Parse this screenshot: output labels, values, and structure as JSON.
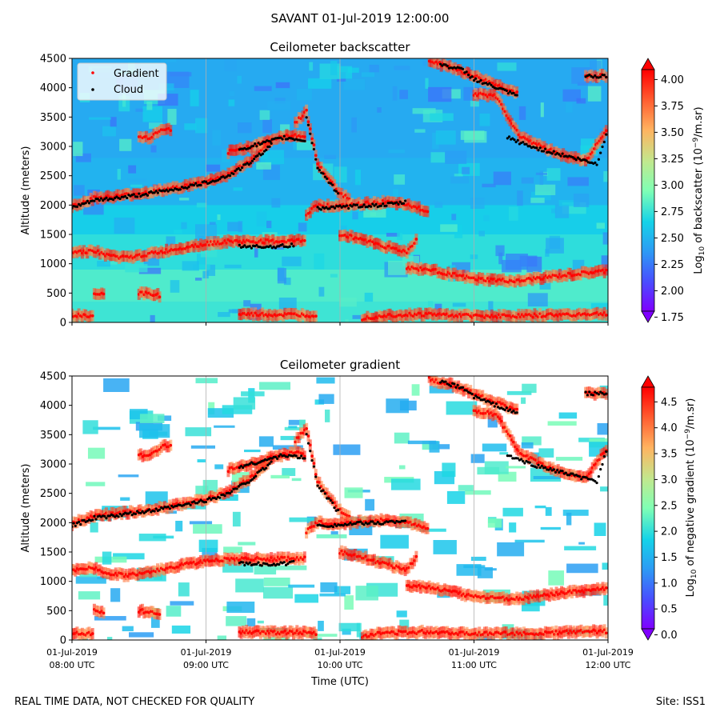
{
  "figure": {
    "suptitle": "SAVANT 01-Jul-2019 12:00:00",
    "footer_left": "REAL TIME DATA, NOT CHECKED FOR QUALITY",
    "footer_right": "Site: ISS1",
    "xlabel": "Time (UTC)"
  },
  "colors": {
    "gradient_points": "#ff0000",
    "cloud_points": "#000000",
    "colormap": "rainbow"
  },
  "chart_data": [
    {
      "type": "heatmap",
      "title": "Ceilometer backscatter",
      "xlabel": "",
      "ylabel": "Altitude (meters)",
      "xlim": [
        "08:00",
        "12:00"
      ],
      "ylim": [
        0,
        4500
      ],
      "x_ticks": [
        {
          "t": "08:00",
          "label": "01-Jul-2019",
          "label2": "08:00 UTC"
        },
        {
          "t": "09:00",
          "label": "01-Jul-2019",
          "label2": "09:00 UTC"
        },
        {
          "t": "10:00",
          "label": "01-Jul-2019",
          "label2": "10:00 UTC"
        },
        {
          "t": "11:00",
          "label": "01-Jul-2019",
          "label2": "11:00 UTC"
        },
        {
          "t": "12:00",
          "label": "01-Jul-2019",
          "label2": "12:00 UTC"
        }
      ],
      "x_tick_labels_shown": false,
      "y_ticks": [
        0,
        500,
        1000,
        1500,
        2000,
        2500,
        3000,
        3500,
        4000,
        4500
      ],
      "grid": "vertical lines at hour ticks",
      "legend": {
        "placement": "top-left",
        "entries": [
          "Gradient",
          "Cloud"
        ]
      },
      "colorbar": {
        "label": "Log10 of backscatter (10^-9/m.sr)",
        "range": [
          1.7,
          4.2
        ],
        "ticks": [
          1.75,
          2.0,
          2.25,
          2.5,
          2.75,
          3.0,
          3.25,
          3.5,
          3.75,
          4.0
        ],
        "tick_labels": [
          "1.75",
          "2.00",
          "2.25",
          "2.50",
          "2.75",
          "3.00",
          "3.25",
          "3.50",
          "3.75",
          "4.00"
        ],
        "extend": "both"
      }
    },
    {
      "type": "heatmap",
      "title": "Ceilometer gradient",
      "xlabel": "Time (UTC)",
      "ylabel": "Altitude (meters)",
      "xlim": [
        "08:00",
        "12:00"
      ],
      "ylim": [
        0,
        4500
      ],
      "x_ticks": [
        {
          "t": "08:00",
          "label": "01-Jul-2019",
          "label2": "08:00 UTC"
        },
        {
          "t": "09:00",
          "label": "01-Jul-2019",
          "label2": "09:00 UTC"
        },
        {
          "t": "10:00",
          "label": "01-Jul-2019",
          "label2": "10:00 UTC"
        },
        {
          "t": "11:00",
          "label": "01-Jul-2019",
          "label2": "11:00 UTC"
        },
        {
          "t": "12:00",
          "label": "01-Jul-2019",
          "label2": "12:00 UTC"
        }
      ],
      "x_tick_labels_shown": true,
      "y_ticks": [
        0,
        500,
        1000,
        1500,
        2000,
        2500,
        3000,
        3500,
        4000,
        4500
      ],
      "grid": "vertical lines at hour ticks",
      "background_where_no_data": "white",
      "colorbar": {
        "label": "Log10 of negative gradient (10^-9/m.sr)",
        "range": [
          -0.1,
          5.0
        ],
        "ticks": [
          0.0,
          0.5,
          1.0,
          1.5,
          2.0,
          2.5,
          3.0,
          3.5,
          4.0,
          4.5
        ],
        "tick_labels": [
          "0.0",
          "0.5",
          "1.0",
          "1.5",
          "2.0",
          "2.5",
          "3.0",
          "3.5",
          "4.0",
          "4.5"
        ],
        "extend": "both"
      }
    }
  ],
  "layers": {
    "gradient": {
      "name": "Gradient",
      "altitude_tracks": [
        {
          "t": [
            "08:00",
            "08:10",
            "08:20",
            "08:30",
            "08:40",
            "08:50",
            "09:00",
            "09:10",
            "09:20",
            "09:30"
          ],
          "alt": [
            1980,
            2120,
            2150,
            2200,
            2250,
            2320,
            2400,
            2520,
            2760,
            3100
          ]
        },
        {
          "t": [
            "09:10",
            "09:20",
            "09:30",
            "09:40",
            "09:45"
          ],
          "alt": [
            2900,
            3000,
            3120,
            3200,
            3150
          ]
        },
        {
          "t": [
            "09:40",
            "09:45",
            "09:50",
            "09:55",
            "10:00",
            "10:05"
          ],
          "alt": [
            3400,
            3600,
            2700,
            2450,
            2200,
            2100
          ]
        },
        {
          "t": [
            "09:45",
            "09:50",
            "10:00",
            "10:10",
            "10:20",
            "10:30",
            "10:40"
          ],
          "alt": [
            1850,
            2000,
            1980,
            2020,
            2050,
            2000,
            1900
          ]
        },
        {
          "t": [
            "08:00",
            "08:10",
            "08:15",
            "08:25",
            "08:35",
            "08:40",
            "08:50",
            "09:00",
            "09:10",
            "09:20",
            "09:30",
            "09:40",
            "09:45"
          ],
          "alt": [
            1200,
            1220,
            1150,
            1100,
            1170,
            1200,
            1280,
            1340,
            1380,
            1380,
            1380,
            1390,
            1400
          ]
        },
        {
          "t": [
            "10:00",
            "10:10",
            "10:20",
            "10:30",
            "10:35"
          ],
          "alt": [
            1500,
            1420,
            1300,
            1200,
            1450
          ]
        },
        {
          "t": [
            "10:30",
            "10:40",
            "10:50",
            "11:00",
            "11:10",
            "11:20",
            "11:30",
            "11:40",
            "11:50",
            "12:00"
          ],
          "alt": [
            930,
            900,
            820,
            740,
            720,
            700,
            760,
            800,
            840,
            880
          ]
        },
        {
          "t": [
            "08:10",
            "08:15"
          ],
          "alt": [
            500,
            480
          ]
        },
        {
          "t": [
            "08:30",
            "08:40"
          ],
          "alt": [
            500,
            460
          ]
        },
        {
          "t": [
            "08:00",
            "08:10"
          ],
          "alt": [
            130,
            100
          ]
        },
        {
          "t": [
            "09:15",
            "09:30",
            "09:40",
            "09:50"
          ],
          "alt": [
            140,
            130,
            130,
            120
          ]
        },
        {
          "t": [
            "10:10",
            "10:20",
            "10:40",
            "11:00",
            "11:20",
            "11:40",
            "12:00"
          ],
          "alt": [
            70,
            120,
            140,
            110,
            110,
            130,
            150
          ]
        },
        {
          "t": [
            "10:40",
            "10:50",
            "11:00",
            "11:10",
            "11:20"
          ],
          "alt": [
            4450,
            4350,
            4200,
            4050,
            3900
          ]
        },
        {
          "t": [
            "11:00",
            "11:10",
            "11:20",
            "11:30",
            "11:40",
            "11:50",
            "12:00"
          ],
          "alt": [
            3900,
            3850,
            3200,
            3000,
            2850,
            2750,
            3300
          ]
        },
        {
          "t": [
            "11:50",
            "11:55",
            "12:00"
          ],
          "alt": [
            4200,
            4200,
            4200
          ]
        },
        {
          "t": [
            "08:30",
            "08:35",
            "08:40",
            "08:45"
          ],
          "alt": [
            3150,
            3150,
            3300,
            3300
          ]
        }
      ]
    },
    "cloud": {
      "name": "Cloud",
      "altitude_tracks": [
        {
          "t": [
            "08:00",
            "08:10",
            "08:20",
            "08:30",
            "08:40",
            "08:50",
            "09:00",
            "09:10",
            "09:20",
            "09:30"
          ],
          "alt": [
            1950,
            2080,
            2120,
            2170,
            2230,
            2300,
            2380,
            2500,
            2730,
            3050
          ]
        },
        {
          "t": [
            "09:15",
            "09:25",
            "09:35",
            "09:45"
          ],
          "alt": [
            2950,
            3050,
            3150,
            3100
          ]
        },
        {
          "t": [
            "09:45",
            "09:50",
            "09:55",
            "10:00"
          ],
          "alt": [
            3500,
            2650,
            2400,
            2150
          ]
        },
        {
          "t": [
            "09:50",
            "10:00",
            "10:10",
            "10:20",
            "10:30"
          ],
          "alt": [
            1950,
            1960,
            1990,
            2000,
            2050
          ]
        },
        {
          "t": [
            "09:15",
            "09:25",
            "09:35",
            "09:40"
          ],
          "alt": [
            1300,
            1290,
            1300,
            1320
          ]
        },
        {
          "t": [
            "10:45",
            "10:55",
            "11:00",
            "11:10",
            "11:20"
          ],
          "alt": [
            4400,
            4300,
            4150,
            4000,
            3850
          ]
        },
        {
          "t": [
            "11:15",
            "11:25",
            "11:35",
            "11:45",
            "11:55",
            "12:00"
          ],
          "alt": [
            3150,
            3000,
            2900,
            2800,
            2700,
            3300
          ]
        },
        {
          "t": [
            "11:50",
            "11:55",
            "12:00"
          ],
          "alt": [
            4200,
            4200,
            4200
          ]
        }
      ]
    }
  }
}
